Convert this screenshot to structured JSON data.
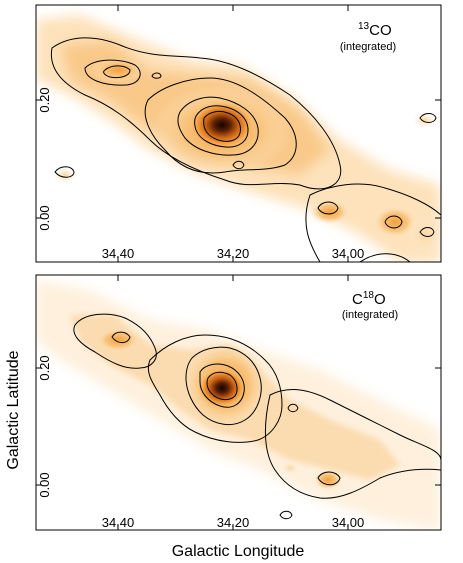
{
  "chart_data": [
    {
      "type": "heatmap",
      "title": "13CO",
      "title_isotope": "13",
      "title_molecule": "CO",
      "subtitle": "(integrated)",
      "xlabel": "",
      "ylabel": "",
      "x_ticks": [
        "34.40",
        "34.20",
        "34.00"
      ],
      "x_tick_values": [
        34.4,
        34.2,
        34.0
      ],
      "y_ticks": [
        "0.00",
        "0.20"
      ],
      "y_tick_values": [
        0.0,
        0.2
      ],
      "xlim": [
        34.52,
        33.94
      ],
      "ylim": [
        -0.06,
        0.3
      ],
      "colormap": [
        "#ffffff",
        "#fbd9a7",
        "#f6a94a",
        "#e07a1c",
        "#9a3a0a",
        "#1a0500"
      ],
      "contour_color": "#000000",
      "emission_features": [
        {
          "l": 34.25,
          "b": 0.15,
          "intensity": 1.0,
          "size": 0.035
        },
        {
          "l": 34.41,
          "b": 0.23,
          "intensity": 0.35,
          "size": 0.025
        },
        {
          "l": 34.08,
          "b": 0.03,
          "intensity": 0.25,
          "size": 0.025
        },
        {
          "l": 34.01,
          "b": 0.02,
          "intensity": 0.25,
          "size": 0.02
        }
      ]
    },
    {
      "type": "heatmap",
      "title": "C18O",
      "title_isotope": "18",
      "title_molecule_prefix": "C",
      "title_molecule_suffix": "O",
      "subtitle": "(integrated)",
      "xlabel": "Galactic Longitude",
      "ylabel": "Galactic Latitude",
      "x_ticks": [
        "34.40",
        "34.20",
        "34.00"
      ],
      "x_tick_values": [
        34.4,
        34.2,
        34.0
      ],
      "y_ticks": [
        "0.00",
        "0.20"
      ],
      "y_tick_values": [
        0.0,
        0.2
      ],
      "xlim": [
        34.52,
        33.94
      ],
      "ylim": [
        -0.06,
        0.3
      ],
      "colormap": [
        "#ffffff",
        "#fbd9a7",
        "#f6a94a",
        "#e07a1c",
        "#9a3a0a",
        "#1a0500"
      ],
      "contour_color": "#000000",
      "emission_features": [
        {
          "l": 34.25,
          "b": 0.15,
          "intensity": 1.0,
          "size": 0.03
        },
        {
          "l": 34.41,
          "b": 0.23,
          "intensity": 0.3,
          "size": 0.025
        },
        {
          "l": 34.08,
          "b": 0.05,
          "intensity": 0.25,
          "size": 0.02
        }
      ]
    }
  ]
}
